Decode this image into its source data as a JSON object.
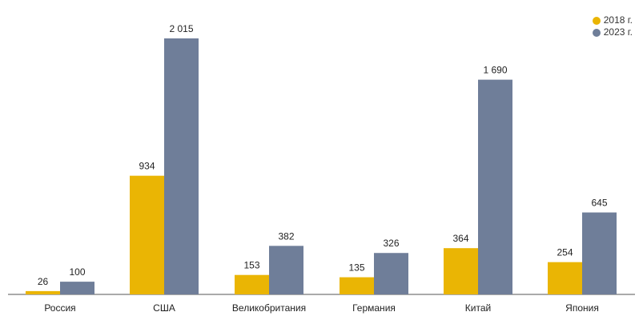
{
  "chart_data": {
    "type": "bar",
    "categories": [
      "Россия",
      "США",
      "Великобритания",
      "Германия",
      "Китай",
      "Япония"
    ],
    "series": [
      {
        "name": "2018 г.",
        "color": "#eab504",
        "values": [
          26,
          934,
          153,
          135,
          364,
          254
        ],
        "labels": [
          "26",
          "934",
          "153",
          "135",
          "364",
          "254"
        ]
      },
      {
        "name": "2023 г.",
        "color": "#6f7e99",
        "values": [
          100,
          2015,
          382,
          326,
          1690,
          645
        ],
        "labels": [
          "100",
          "2 015",
          "382",
          "326",
          "1 690",
          "645"
        ]
      }
    ],
    "legend_position": "top-right",
    "grid": false,
    "ylim": [
      0,
      2200
    ]
  }
}
